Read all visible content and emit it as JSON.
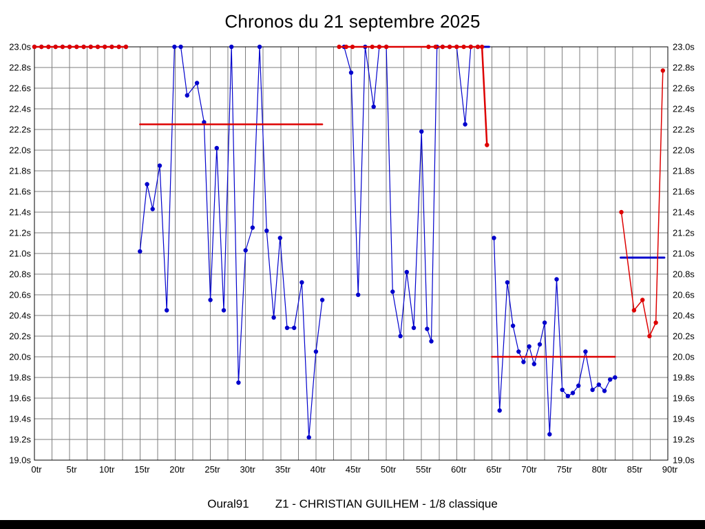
{
  "page": {
    "title": "Chronos du 21 septembre 2025",
    "footer": {
      "event": "Oural91",
      "driver": "Z1 - CHRISTIAN GUILHEM - 1/8 classique"
    }
  },
  "chart_data": {
    "type": "line",
    "title": "Chronos du 21 septembre 2025",
    "x_unit": "tr",
    "y_unit": "s",
    "xlim": [
      0,
      90
    ],
    "ylim": [
      19.0,
      23.0
    ],
    "x_tick_step": 5,
    "grid": true,
    "grid_x_step": 2.5,
    "grid_y_step": 0.2,
    "x_tick_labels": [
      "0tr",
      "5tr",
      "10tr",
      "15tr",
      "20tr",
      "25tr",
      "30tr",
      "35tr",
      "40tr",
      "45tr",
      "50tr",
      "55tr",
      "60tr",
      "65tr",
      "70tr",
      "75tr",
      "80tr",
      "85tr",
      "90tr"
    ],
    "y_tick_labels": [
      "23.0s",
      "22.8s",
      "22.6s",
      "22.4s",
      "22.2s",
      "22.0s",
      "21.8s",
      "21.6s",
      "21.4s",
      "21.2s",
      "21.0s",
      "20.8s",
      "20.6s",
      "20.4s",
      "20.2s",
      "20.0s",
      "19.8s",
      "19.6s",
      "19.4s",
      "19.2s",
      "19.0s"
    ],
    "colors": {
      "laps": "#0000CC",
      "reference": "#DD0000",
      "grid": "#7d7d7d",
      "axis": "#000000"
    },
    "series": [
      {
        "name": "lap-times-blue",
        "color": "#0000CC",
        "segments": [
          {
            "dots": true,
            "width": 1.2,
            "points": [
              [
                0,
                23
              ],
              [
                1,
                23
              ],
              [
                2,
                23
              ],
              [
                3,
                23
              ],
              [
                4,
                23
              ],
              [
                5,
                23
              ],
              [
                6,
                23
              ],
              [
                7,
                23
              ],
              [
                8,
                23
              ],
              [
                9,
                23
              ],
              [
                10,
                23
              ],
              [
                11,
                23
              ],
              [
                12,
                23
              ],
              [
                13,
                23
              ]
            ]
          },
          {
            "dots": true,
            "width": 1.2,
            "points": [
              [
                15,
                21.02
              ],
              [
                16,
                21.67
              ],
              [
                16.8,
                21.43
              ],
              [
                17.8,
                21.85
              ],
              [
                18.8,
                20.45
              ],
              [
                19.9,
                23
              ],
              [
                20.8,
                23
              ],
              [
                21.7,
                22.53
              ],
              [
                23.1,
                22.65
              ],
              [
                24.1,
                22.27
              ],
              [
                25,
                20.55
              ],
              [
                25.9,
                22.02
              ],
              [
                26.9,
                20.45
              ],
              [
                28,
                23
              ],
              [
                29,
                19.75
              ],
              [
                30,
                21.03
              ],
              [
                31,
                21.25
              ],
              [
                32,
                23
              ],
              [
                33,
                21.22
              ],
              [
                34,
                20.38
              ],
              [
                34.9,
                21.15
              ],
              [
                35.9,
                20.28
              ],
              [
                36.9,
                20.28
              ],
              [
                38,
                20.72
              ],
              [
                39,
                19.22
              ],
              [
                40,
                20.05
              ],
              [
                40.9,
                20.55
              ]
            ]
          },
          {
            "dots": true,
            "width": 1.2,
            "points": [
              [
                44,
                23
              ],
              [
                45,
                22.75
              ],
              [
                46,
                20.6
              ],
              [
                47,
                23
              ],
              [
                48.2,
                22.42
              ],
              [
                49,
                23
              ],
              [
                50,
                23
              ],
              [
                50.9,
                20.63
              ],
              [
                52,
                20.2
              ],
              [
                52.9,
                20.82
              ],
              [
                53.9,
                20.28
              ],
              [
                55,
                22.18
              ],
              [
                55.8,
                20.27
              ],
              [
                56.4,
                20.15
              ],
              [
                57.2,
                23
              ],
              [
                58,
                23
              ],
              [
                59,
                23
              ],
              [
                60,
                23
              ],
              [
                61.2,
                22.25
              ],
              [
                62,
                23
              ],
              [
                63,
                23
              ]
            ]
          },
          {
            "dots": false,
            "width": 3,
            "points": [
              [
                62.8,
                23
              ],
              [
                64.6,
                23
              ]
            ]
          },
          {
            "dots": true,
            "width": 1.2,
            "points": [
              [
                65.3,
                21.15
              ],
              [
                66.1,
                19.48
              ],
              [
                67.2,
                20.72
              ],
              [
                68,
                20.3
              ],
              [
                68.8,
                20.05
              ],
              [
                69.5,
                19.95
              ],
              [
                70.3,
                20.1
              ],
              [
                71,
                19.93
              ],
              [
                71.8,
                20.12
              ],
              [
                72.5,
                20.33
              ],
              [
                73.2,
                19.25
              ],
              [
                74.2,
                20.75
              ],
              [
                75,
                19.68
              ],
              [
                75.8,
                19.62
              ],
              [
                76.5,
                19.65
              ],
              [
                77.3,
                19.72
              ],
              [
                78.3,
                20.05
              ],
              [
                79.3,
                19.68
              ],
              [
                80.2,
                19.73
              ],
              [
                81,
                19.67
              ],
              [
                81.8,
                19.78
              ],
              [
                82.5,
                19.8
              ]
            ]
          },
          {
            "dots": false,
            "width": 3,
            "points": [
              [
                83.3,
                20.96
              ],
              [
                89.5,
                20.96
              ]
            ]
          }
        ]
      },
      {
        "name": "reference-red",
        "color": "#DD0000",
        "segments": [
          {
            "dots": true,
            "width": 2.5,
            "points": [
              [
                0,
                23
              ],
              [
                1,
                23
              ],
              [
                2,
                23
              ],
              [
                3,
                23
              ],
              [
                4,
                23
              ],
              [
                5,
                23
              ],
              [
                6,
                23
              ],
              [
                7,
                23
              ],
              [
                8,
                23
              ],
              [
                9,
                23
              ],
              [
                10,
                23
              ],
              [
                11,
                23
              ],
              [
                12,
                23
              ],
              [
                13,
                23
              ]
            ]
          },
          {
            "dots": false,
            "width": 2.5,
            "points": [
              [
                15,
                22.25
              ],
              [
                40.9,
                22.25
              ]
            ]
          },
          {
            "dots": true,
            "width": 2.5,
            "points": [
              [
                43.3,
                23
              ],
              [
                44.3,
                23
              ],
              [
                45.2,
                23
              ],
              [
                48,
                23
              ],
              [
                49,
                23
              ],
              [
                50,
                23
              ],
              [
                56,
                23
              ],
              [
                57,
                23
              ],
              [
                58,
                23
              ],
              [
                59,
                23
              ],
              [
                60,
                23
              ],
              [
                61,
                23
              ],
              [
                62,
                23
              ],
              [
                63,
                23
              ],
              [
                63.6,
                23
              ],
              [
                64.3,
                22.05
              ]
            ]
          },
          {
            "dots": false,
            "width": 2.5,
            "points": [
              [
                65,
                20.0
              ],
              [
                82.5,
                20.0
              ]
            ]
          },
          {
            "dots": true,
            "width": 1.5,
            "points": [
              [
                83.4,
                21.4
              ],
              [
                85.2,
                20.45
              ],
              [
                86.4,
                20.55
              ],
              [
                87.4,
                20.2
              ],
              [
                88.3,
                20.33
              ],
              [
                89.3,
                22.77
              ]
            ]
          }
        ]
      }
    ]
  }
}
